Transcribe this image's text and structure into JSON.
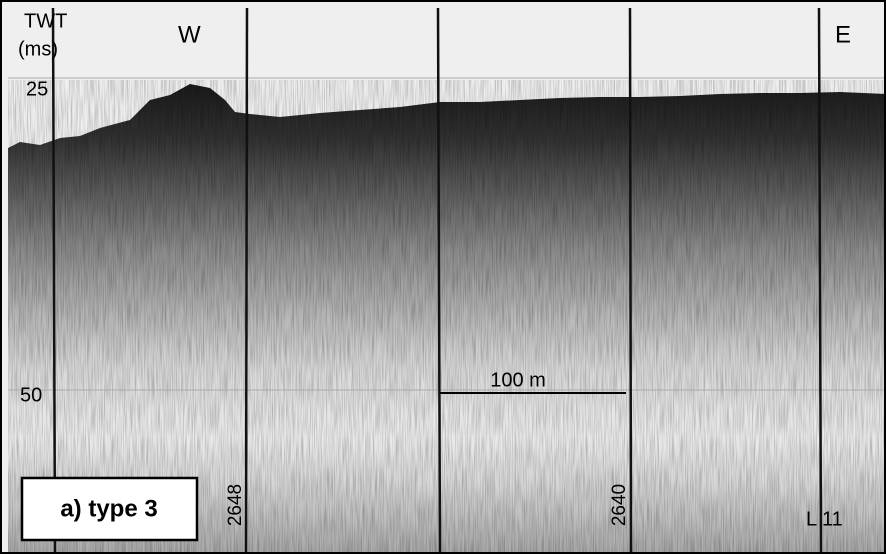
{
  "axis": {
    "title": "TWT",
    "unit": "(ms)",
    "ticks": [
      "25",
      "50"
    ]
  },
  "directions": {
    "west": "W",
    "east": "E"
  },
  "scale_bar": "100 m",
  "shotpoints": [
    "2648",
    "2640"
  ],
  "line_label": "L 11",
  "panel_label": "a) type 3"
}
